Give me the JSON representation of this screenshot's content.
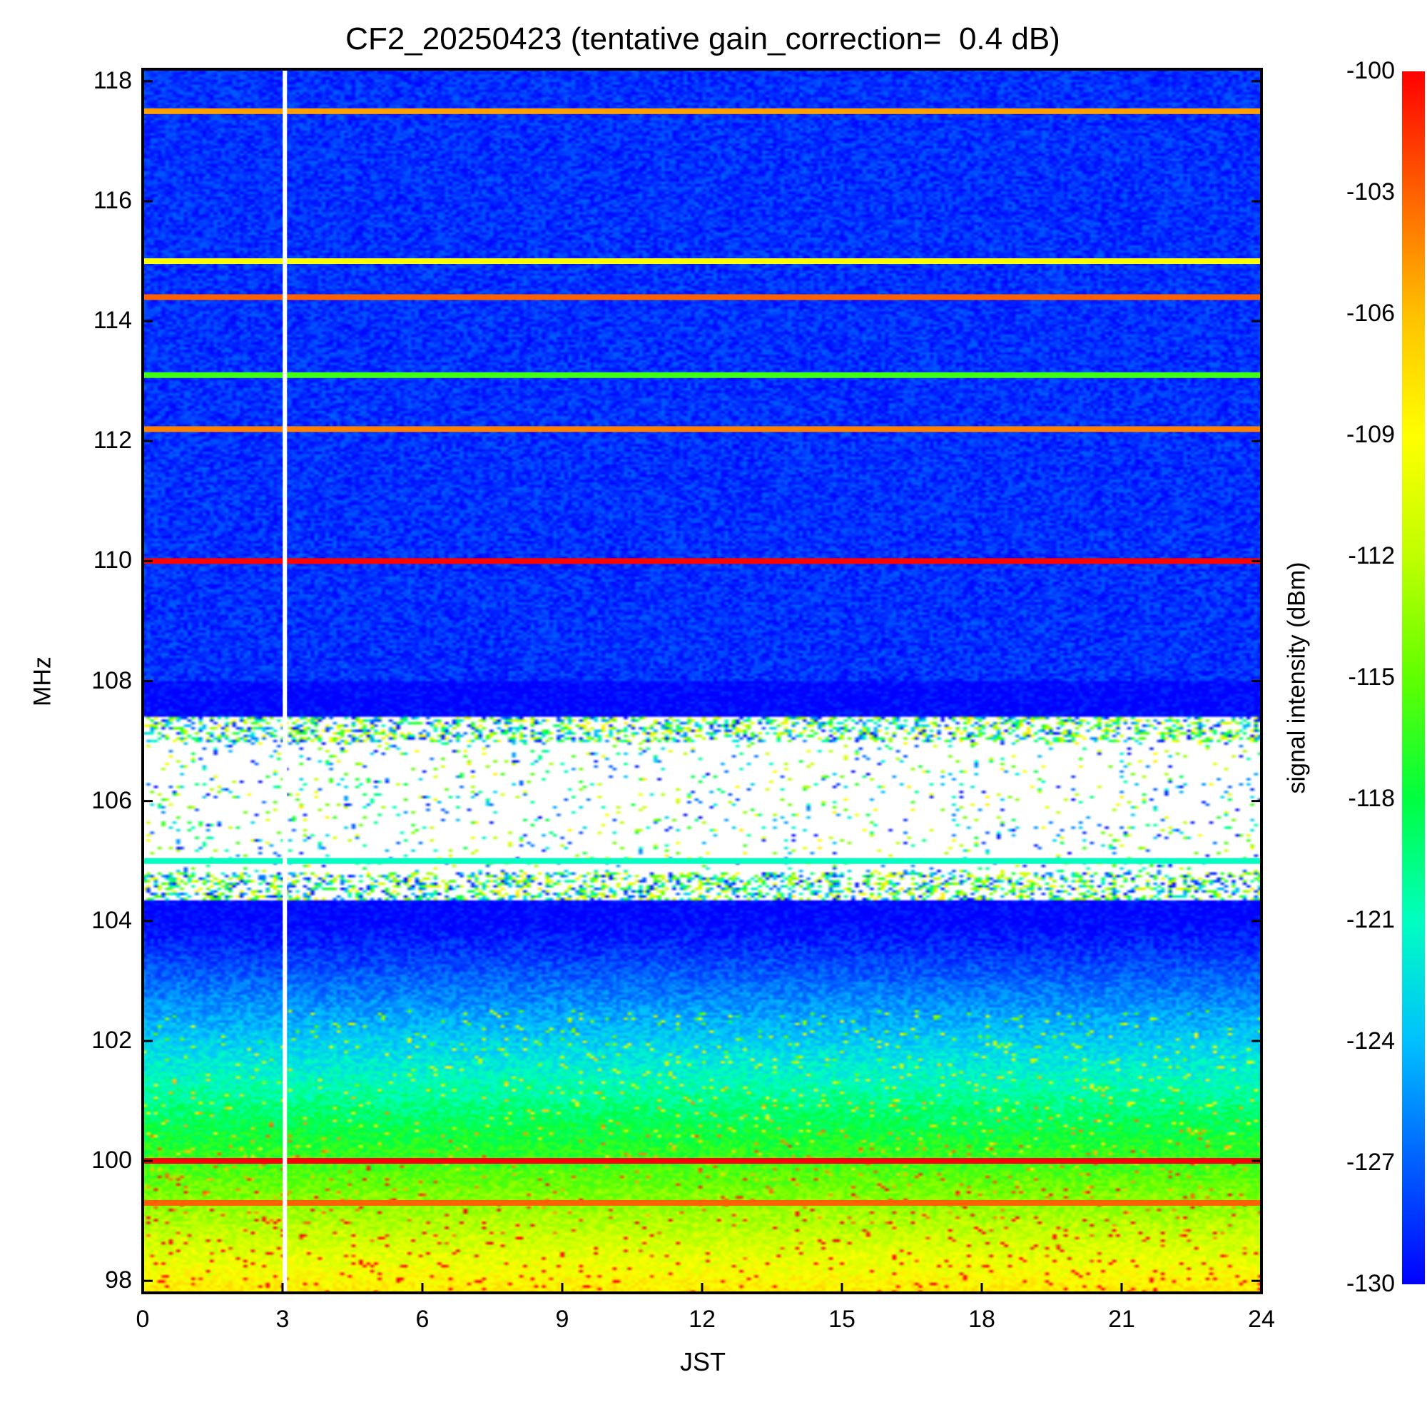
{
  "chart_data": {
    "type": "heatmap",
    "title": "CF2_20250423 (tentative gain_correction=  0.4 dB)",
    "xlabel": "JST",
    "ylabel": "MHz",
    "colorbar_label": "signal intensity (dBm)",
    "x_ticks": [
      "0",
      "3",
      "6",
      "9",
      "12",
      "15",
      "18",
      "21",
      "24"
    ],
    "y_ticks": [
      "98",
      "100",
      "102",
      "104",
      "106",
      "108",
      "110",
      "112",
      "114",
      "116",
      "118"
    ],
    "colorbar_ticks": [
      "-100",
      "-103",
      "-106",
      "-109",
      "-112",
      "-115",
      "-118",
      "-121",
      "-124",
      "-127",
      "-130"
    ],
    "xlim": [
      0,
      24
    ],
    "ylim": [
      97.8,
      118.2
    ],
    "clim": [
      -130,
      -100
    ],
    "colormap": [
      "#0000ff",
      "#0060ff",
      "#00c0ff",
      "#00ffc0",
      "#00ff40",
      "#60ff00",
      "#c0ff00",
      "#ffff00",
      "#ffc000",
      "#ff6000",
      "#ff0000"
    ],
    "data_gap_jst": 3.05,
    "strong_lines_mhz": [
      {
        "freq": 117.5,
        "level": -105
      },
      {
        "freq": 115.0,
        "level": -109
      },
      {
        "freq": 114.4,
        "level": -103
      },
      {
        "freq": 113.1,
        "level": -116
      },
      {
        "freq": 112.2,
        "level": -104
      },
      {
        "freq": 110.0,
        "level": -100
      },
      {
        "freq": 105.0,
        "level": -121
      },
      {
        "freq": 100.0,
        "level": -100
      },
      {
        "freq": 99.3,
        "level": -103
      }
    ],
    "masked_band_mhz": [
      104.0,
      108.0
    ]
  }
}
